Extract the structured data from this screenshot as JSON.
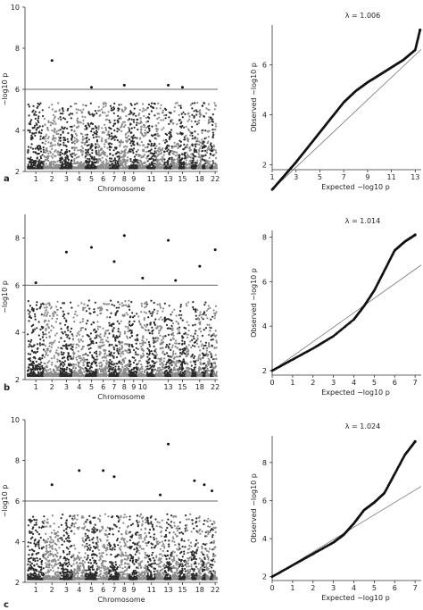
{
  "chart_data": [
    {
      "panel": "a",
      "type": "scatter",
      "subtype": "manhattan",
      "xlabel": "Chromosome",
      "ylabel": "−log10 p",
      "ylim": [
        2,
        10
      ],
      "yticks": [
        2,
        4,
        6,
        8,
        10
      ],
      "significance_line": 6,
      "xtick_labels": [
        "1",
        "2",
        "3",
        "4",
        "5",
        "6",
        "7",
        "8",
        "9",
        "11",
        "13",
        "15",
        "18",
        "22"
      ],
      "chromosomes": [
        1,
        2,
        3,
        4,
        5,
        6,
        7,
        8,
        9,
        10,
        11,
        12,
        13,
        14,
        15,
        16,
        17,
        18,
        19,
        20,
        21,
        22
      ],
      "colors": [
        "#2a2a2a",
        "#8a8a8a"
      ],
      "top_hits": [
        {
          "chromosome": 2,
          "y": 7.4
        },
        {
          "chromosome": 5,
          "y": 6.1
        },
        {
          "chromosome": 8,
          "y": 6.2
        },
        {
          "chromosome": 13,
          "y": 6.2
        },
        {
          "chromosome": 15,
          "y": 6.1
        }
      ]
    },
    {
      "panel": "a",
      "type": "scatter",
      "subtype": "qq",
      "lambda_label": "λ = 1.006",
      "xlabel": "Expected −log10 p",
      "ylabel": "Observed −log10 p",
      "xlim": [
        1,
        13.5
      ],
      "ylim": [
        1.8,
        7.6
      ],
      "xticks": [
        1,
        3,
        5,
        7,
        9,
        11,
        13
      ],
      "yticks": [
        2,
        4,
        6
      ],
      "qq_curve": [
        [
          1,
          1
        ],
        [
          2,
          1.55
        ],
        [
          3,
          2.1
        ],
        [
          4,
          2.7
        ],
        [
          5,
          3.3
        ],
        [
          6,
          3.9
        ],
        [
          7,
          4.5
        ],
        [
          8,
          4.95
        ],
        [
          9,
          5.3
        ],
        [
          10,
          5.6
        ],
        [
          11,
          5.9
        ],
        [
          12,
          6.2
        ],
        [
          13,
          6.6
        ],
        [
          13.4,
          7.4
        ]
      ]
    },
    {
      "panel": "b",
      "type": "scatter",
      "subtype": "manhattan",
      "xlabel": "Chromosome",
      "ylabel": "−log10 p",
      "ylim": [
        2,
        9
      ],
      "yticks": [
        2,
        4,
        6,
        8
      ],
      "significance_line": 6,
      "xtick_labels": [
        "1",
        "2",
        "3",
        "4",
        "5",
        "6",
        "7",
        "8",
        "9",
        "10",
        "13",
        "15",
        "18",
        "22"
      ],
      "chromosomes": [
        1,
        2,
        3,
        4,
        5,
        6,
        7,
        8,
        9,
        10,
        11,
        12,
        13,
        14,
        15,
        16,
        17,
        18,
        19,
        20,
        21,
        22
      ],
      "colors": [
        "#2a2a2a",
        "#8a8a8a"
      ],
      "top_hits": [
        {
          "chromosome": 1,
          "y": 6.1
        },
        {
          "chromosome": 3,
          "y": 7.4
        },
        {
          "chromosome": 5,
          "y": 7.6
        },
        {
          "chromosome": 7,
          "y": 7.0
        },
        {
          "chromosome": 8,
          "y": 8.1
        },
        {
          "chromosome": 10,
          "y": 6.3
        },
        {
          "chromosome": 13,
          "y": 7.9
        },
        {
          "chromosome": 14,
          "y": 6.2
        },
        {
          "chromosome": 18,
          "y": 6.8
        },
        {
          "chromosome": 22,
          "y": 7.5
        }
      ]
    },
    {
      "panel": "b",
      "type": "scatter",
      "subtype": "qq",
      "lambda_label": "λ = 1.014",
      "xlabel": "Expected −log10 p",
      "ylabel": "Observed −log10 p",
      "xlim": [
        0,
        7.3
      ],
      "ylim": [
        1.8,
        8.3
      ],
      "xticks": [
        0,
        1,
        2,
        3,
        4,
        5,
        6,
        7
      ],
      "yticks": [
        2,
        4,
        6,
        8
      ],
      "qq_curve": [
        [
          0,
          2
        ],
        [
          1,
          2.5
        ],
        [
          2,
          3.0
        ],
        [
          3,
          3.55
        ],
        [
          4,
          4.3
        ],
        [
          4.5,
          4.9
        ],
        [
          5,
          5.6
        ],
        [
          5.5,
          6.5
        ],
        [
          6,
          7.4
        ],
        [
          6.5,
          7.8
        ],
        [
          7,
          8.1
        ]
      ]
    },
    {
      "panel": "c",
      "type": "scatter",
      "subtype": "manhattan",
      "xlabel": "Chromosome",
      "ylabel": "−log10 p",
      "ylim": [
        2,
        10
      ],
      "yticks": [
        2,
        4,
        6,
        8,
        10
      ],
      "significance_line": 6,
      "xtick_labels": [
        "1",
        "2",
        "3",
        "4",
        "5",
        "6",
        "7",
        "8",
        "9",
        "11",
        "13",
        "15",
        "18",
        "22"
      ],
      "chromosomes": [
        1,
        2,
        3,
        4,
        5,
        6,
        7,
        8,
        9,
        10,
        11,
        12,
        13,
        14,
        15,
        16,
        17,
        18,
        19,
        20,
        21,
        22
      ],
      "colors": [
        "#2a2a2a",
        "#8a8a8a"
      ],
      "top_hits": [
        {
          "chromosome": 2,
          "y": 6.8
        },
        {
          "chromosome": 4,
          "y": 7.5
        },
        {
          "chromosome": 6,
          "y": 7.5
        },
        {
          "chromosome": 7,
          "y": 7.2
        },
        {
          "chromosome": 12,
          "y": 6.3
        },
        {
          "chromosome": 13,
          "y": 8.8
        },
        {
          "chromosome": 17,
          "y": 7.0
        },
        {
          "chromosome": 19,
          "y": 6.8
        },
        {
          "chromosome": 21,
          "y": 6.5
        }
      ]
    },
    {
      "panel": "c",
      "type": "scatter",
      "subtype": "qq",
      "lambda_label": "λ = 1.024",
      "xlabel": "Expected −log10 p",
      "ylabel": "Observed −log10 p",
      "xlim": [
        0,
        7.3
      ],
      "ylim": [
        1.8,
        9.4
      ],
      "xticks": [
        0,
        1,
        2,
        3,
        4,
        5,
        6,
        7
      ],
      "yticks": [
        2,
        4,
        6,
        8
      ],
      "qq_curve": [
        [
          0,
          2
        ],
        [
          1,
          2.6
        ],
        [
          2,
          3.2
        ],
        [
          3,
          3.8
        ],
        [
          3.5,
          4.2
        ],
        [
          4,
          4.8
        ],
        [
          4.5,
          5.5
        ],
        [
          5,
          5.9
        ],
        [
          5.5,
          6.4
        ],
        [
          6,
          7.4
        ],
        [
          6.5,
          8.4
        ],
        [
          7,
          9.1
        ]
      ]
    }
  ]
}
